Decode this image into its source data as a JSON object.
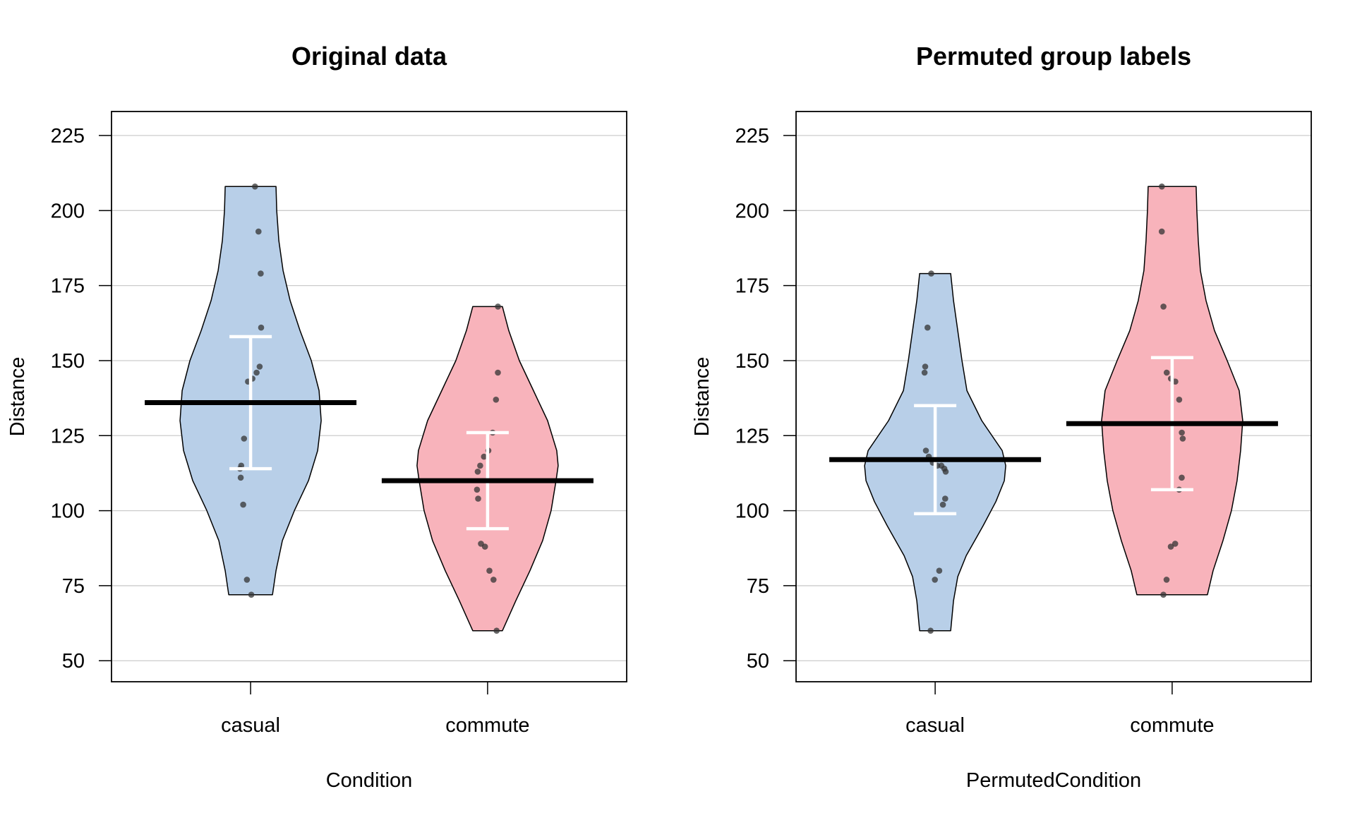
{
  "colors": {
    "casual_fill": "#b8cfe8",
    "commute_fill": "#f8b3bb",
    "outline": "#000000",
    "grid": "#cccccc",
    "points": "#333333",
    "mean_bar": "#000000",
    "ci_bar": "#ffffff"
  },
  "chart_data": [
    {
      "type": "violin",
      "title": "Original data",
      "xlabel": "Condition",
      "ylabel": "Distance",
      "categories": [
        "casual",
        "commute"
      ],
      "yticks": [
        50,
        75,
        100,
        125,
        150,
        175,
        200,
        225
      ],
      "ylim": [
        43,
        233
      ],
      "grid": "horizontal",
      "groups": [
        {
          "name": "casual",
          "color": "#b8cfe8",
          "points": [
            208,
            193,
            179,
            161,
            148,
            146,
            144,
            143,
            124,
            115,
            114,
            111,
            102,
            77,
            72
          ],
          "mean": 136,
          "ci": [
            114,
            158
          ],
          "violin": [
            [
              72,
              0.31
            ],
            [
              80,
              0.36
            ],
            [
              90,
              0.45
            ],
            [
              100,
              0.62
            ],
            [
              110,
              0.82
            ],
            [
              120,
              0.95
            ],
            [
              130,
              1.0
            ],
            [
              140,
              0.97
            ],
            [
              150,
              0.86
            ],
            [
              160,
              0.7
            ],
            [
              170,
              0.56
            ],
            [
              180,
              0.46
            ],
            [
              190,
              0.4
            ],
            [
              200,
              0.37
            ],
            [
              208,
              0.36
            ]
          ]
        },
        {
          "name": "commute",
          "color": "#f8b3bb",
          "points": [
            168,
            146,
            137,
            126,
            120,
            118,
            115,
            113,
            107,
            104,
            89,
            88,
            80,
            77,
            60
          ],
          "mean": 110,
          "ci": [
            94,
            126
          ],
          "violin": [
            [
              60,
              0.21
            ],
            [
              70,
              0.4
            ],
            [
              80,
              0.6
            ],
            [
              90,
              0.78
            ],
            [
              100,
              0.9
            ],
            [
              110,
              0.97
            ],
            [
              115,
              1.0
            ],
            [
              120,
              0.98
            ],
            [
              130,
              0.85
            ],
            [
              140,
              0.65
            ],
            [
              150,
              0.45
            ],
            [
              160,
              0.3
            ],
            [
              168,
              0.21
            ]
          ]
        }
      ]
    },
    {
      "type": "violin",
      "title": "Permuted group labels",
      "xlabel": "PermutedCondition",
      "ylabel": "Distance",
      "categories": [
        "casual",
        "commute"
      ],
      "yticks": [
        50,
        75,
        100,
        125,
        150,
        175,
        200,
        225
      ],
      "ylim": [
        43,
        233
      ],
      "grid": "horizontal",
      "groups": [
        {
          "name": "casual",
          "color": "#b8cfe8",
          "points": [
            179,
            161,
            148,
            146,
            120,
            118,
            116,
            115,
            115,
            114,
            113,
            104,
            102,
            80,
            77,
            60
          ],
          "mean": 117,
          "ci": [
            99,
            135
          ],
          "violin": [
            [
              60,
              0.22
            ],
            [
              70,
              0.26
            ],
            [
              78,
              0.32
            ],
            [
              85,
              0.44
            ],
            [
              95,
              0.68
            ],
            [
              103,
              0.86
            ],
            [
              110,
              0.98
            ],
            [
              115,
              1.0
            ],
            [
              120,
              0.95
            ],
            [
              130,
              0.66
            ],
            [
              140,
              0.45
            ],
            [
              150,
              0.38
            ],
            [
              160,
              0.32
            ],
            [
              170,
              0.26
            ],
            [
              179,
              0.22
            ]
          ]
        },
        {
          "name": "commute",
          "color": "#f8b3bb",
          "points": [
            208,
            193,
            168,
            146,
            144,
            143,
            137,
            126,
            124,
            111,
            107,
            89,
            88,
            77,
            72
          ],
          "mean": 129,
          "ci": [
            107,
            151
          ],
          "violin": [
            [
              72,
              0.5
            ],
            [
              80,
              0.58
            ],
            [
              90,
              0.72
            ],
            [
              100,
              0.84
            ],
            [
              110,
              0.92
            ],
            [
              120,
              0.97
            ],
            [
              130,
              1.0
            ],
            [
              140,
              0.95
            ],
            [
              150,
              0.78
            ],
            [
              160,
              0.6
            ],
            [
              170,
              0.48
            ],
            [
              180,
              0.4
            ],
            [
              190,
              0.37
            ],
            [
              200,
              0.35
            ],
            [
              208,
              0.34
            ]
          ]
        }
      ]
    }
  ]
}
